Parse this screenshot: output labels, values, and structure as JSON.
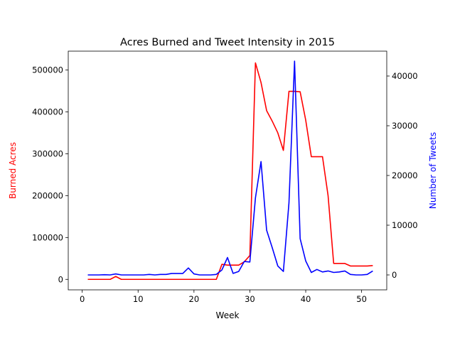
{
  "chart_data": {
    "type": "line",
    "title": "Acres Burned and Tweet Intensity in 2015",
    "xlabel": "Week",
    "xlim": [
      -2.5,
      54.5
    ],
    "xticks": [
      0,
      10,
      20,
      30,
      40,
      50
    ],
    "x": [
      1,
      2,
      3,
      4,
      5,
      6,
      7,
      8,
      9,
      10,
      11,
      12,
      13,
      14,
      15,
      16,
      17,
      18,
      19,
      20,
      21,
      22,
      23,
      24,
      25,
      26,
      27,
      28,
      29,
      30,
      31,
      32,
      33,
      34,
      35,
      36,
      37,
      38,
      39,
      40,
      41,
      42,
      43,
      44,
      45,
      46,
      47,
      48,
      49,
      50,
      51,
      52
    ],
    "axes": {
      "left": {
        "label": "Burned Acres",
        "color": "#ff0000",
        "ylim": [
          -25000,
          545000
        ],
        "ticks": [
          0,
          100000,
          200000,
          300000,
          400000,
          500000
        ]
      },
      "right": {
        "label": "Number of Tweets",
        "color": "#0000ff",
        "ylim": [
          -3000,
          45000
        ],
        "ticks": [
          0,
          10000,
          20000,
          30000,
          40000
        ]
      }
    },
    "series": [
      {
        "axis": "left",
        "color": "#ff0000",
        "values": [
          0,
          0,
          0,
          0,
          0,
          7000,
          0,
          0,
          0,
          0,
          0,
          0,
          0,
          0,
          0,
          0,
          0,
          0,
          0,
          0,
          0,
          0,
          0,
          0,
          36000,
          34000,
          34000,
          34000,
          42000,
          57000,
          517000,
          470000,
          403000,
          378000,
          350000,
          308000,
          449000,
          449000,
          448000,
          380000,
          293000,
          293000,
          293000,
          200000,
          38000,
          38000,
          38000,
          32000,
          32000,
          32000,
          32000,
          33000
        ]
      },
      {
        "axis": "right",
        "color": "#0000ff",
        "values": [
          0,
          0,
          0,
          50,
          0,
          200,
          0,
          0,
          0,
          0,
          0,
          100,
          0,
          100,
          100,
          300,
          300,
          300,
          1400,
          200,
          0,
          0,
          0,
          100,
          1000,
          3500,
          300,
          700,
          2700,
          2600,
          15500,
          22800,
          9000,
          5500,
          1800,
          700,
          14500,
          43000,
          7300,
          2800,
          500,
          1100,
          600,
          800,
          500,
          600,
          800,
          100,
          0,
          0,
          100,
          800
        ]
      }
    ]
  }
}
